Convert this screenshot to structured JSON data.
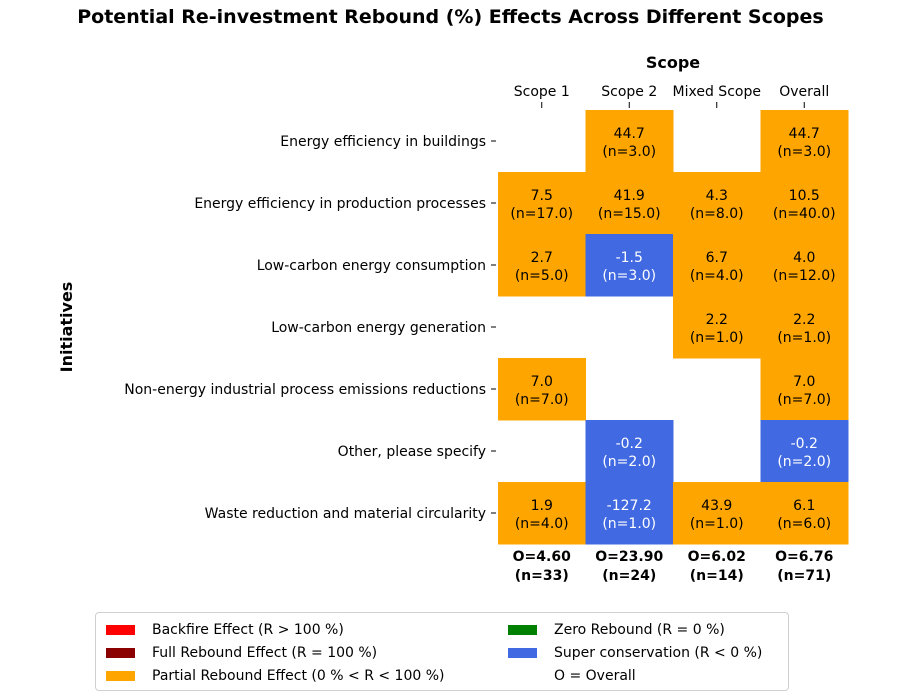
{
  "title": "Potential Re-investment Rebound (%) Effects Across Different Scopes",
  "chart_data": {
    "type": "heatmap",
    "xlabel": "Scope",
    "ylabel": "Initiatives",
    "columns": [
      "Scope 1",
      "Scope 2",
      "Mixed Scope",
      "Overall"
    ],
    "rows": [
      "Energy efficiency in buildings",
      "Energy efficiency in production processes",
      "Low-carbon energy consumption",
      "Low-carbon energy generation",
      "Non-energy industrial process emissions reductions",
      "Other, please specify",
      "Waste reduction and material circularity"
    ],
    "cells": [
      [
        null,
        {
          "value": 44.7,
          "value_text": "44.7",
          "n_text": "(n=3.0)"
        },
        null,
        {
          "value": 44.7,
          "value_text": "44.7",
          "n_text": "(n=3.0)"
        }
      ],
      [
        {
          "value": 7.5,
          "value_text": "7.5",
          "n_text": "(n=17.0)"
        },
        {
          "value": 41.9,
          "value_text": "41.9",
          "n_text": "(n=15.0)"
        },
        {
          "value": 4.3,
          "value_text": "4.3",
          "n_text": "(n=8.0)"
        },
        {
          "value": 10.5,
          "value_text": "10.5",
          "n_text": "(n=40.0)"
        }
      ],
      [
        {
          "value": 2.7,
          "value_text": "2.7",
          "n_text": "(n=5.0)"
        },
        {
          "value": -1.5,
          "value_text": "-1.5",
          "n_text": "(n=3.0)"
        },
        {
          "value": 6.7,
          "value_text": "6.7",
          "n_text": "(n=4.0)"
        },
        {
          "value": 4.0,
          "value_text": "4.0",
          "n_text": "(n=12.0)"
        }
      ],
      [
        null,
        null,
        {
          "value": 2.2,
          "value_text": "2.2",
          "n_text": "(n=1.0)"
        },
        {
          "value": 2.2,
          "value_text": "2.2",
          "n_text": "(n=1.0)"
        }
      ],
      [
        {
          "value": 7.0,
          "value_text": "7.0",
          "n_text": "(n=7.0)"
        },
        null,
        null,
        {
          "value": 7.0,
          "value_text": "7.0",
          "n_text": "(n=7.0)"
        }
      ],
      [
        null,
        {
          "value": -0.2,
          "value_text": "-0.2",
          "n_text": "(n=2.0)"
        },
        null,
        {
          "value": -0.2,
          "value_text": "-0.2",
          "n_text": "(n=2.0)"
        }
      ],
      [
        {
          "value": 1.9,
          "value_text": "1.9",
          "n_text": "(n=4.0)"
        },
        {
          "value": -127.2,
          "value_text": "-127.2",
          "n_text": "(n=1.0)"
        },
        {
          "value": 43.9,
          "value_text": "43.9",
          "n_text": "(n=1.0)"
        },
        {
          "value": 6.1,
          "value_text": "6.1",
          "n_text": "(n=6.0)"
        }
      ]
    ],
    "column_totals": [
      {
        "overall_text": "O=4.60",
        "n_text": "(n=33)"
      },
      {
        "overall_text": "O=23.90",
        "n_text": "(n=24)"
      },
      {
        "overall_text": "O=6.02",
        "n_text": "(n=14)"
      },
      {
        "overall_text": "O=6.76",
        "n_text": "(n=71)"
      }
    ],
    "colors": {
      "backfire": "#ff0000",
      "full": "#8b0000",
      "partial": "#ffa500",
      "zero": "#008000",
      "super": "#4169e1"
    },
    "legend": {
      "placement": "bottom",
      "items": [
        {
          "key": "backfire",
          "label": "Backfire Effect (R > 100 %)"
        },
        {
          "key": "full",
          "label": "Full Rebound Effect (R = 100 %)"
        },
        {
          "key": "partial",
          "label": "Partial Rebound Effect (0 % < R < 100 %)"
        },
        {
          "key": "zero",
          "label": "Zero Rebound (R = 0 %)"
        },
        {
          "key": "super",
          "label": "Super conservation (R < 0 %)"
        },
        {
          "key": null,
          "label": "O = Overall"
        }
      ]
    }
  }
}
